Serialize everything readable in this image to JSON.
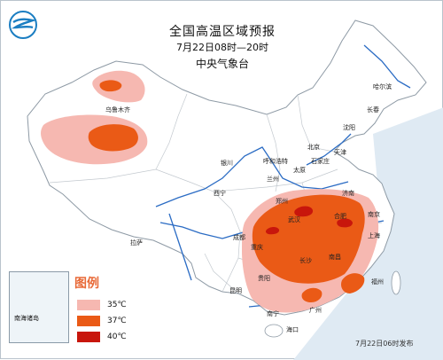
{
  "header": {
    "title": "全国高温区域预报",
    "time_range": "7月22日08时—20时",
    "issuer": "中央气象台"
  },
  "legend": {
    "title": "图例",
    "items": [
      {
        "label": "35℃",
        "color": "#f6b8b1"
      },
      {
        "label": "37℃",
        "color": "#ea5a16"
      },
      {
        "label": "40℃",
        "color": "#c8160c"
      }
    ]
  },
  "inset_label": "南海诸岛",
  "cities": [
    "乌鲁木齐",
    "哈尔滨",
    "长春",
    "沈阳",
    "北京",
    "天津",
    "石家庄",
    "呼和浩特",
    "太原",
    "银川",
    "兰州",
    "西宁",
    "郑州",
    "济南",
    "南京",
    "合肥",
    "武汉",
    "上海",
    "成都",
    "重庆",
    "南昌",
    "长沙",
    "贵阳",
    "昆明",
    "福州",
    "南宁",
    "广州",
    "海口",
    "拉萨"
  ],
  "footer": {
    "issued": "7月22日06时发布"
  },
  "colors": {
    "heat_35": "#f6b8b1",
    "heat_37": "#ea5a16",
    "heat_40": "#c8160c",
    "river": "#2b6cc4",
    "logo": "#1b7ec2"
  }
}
